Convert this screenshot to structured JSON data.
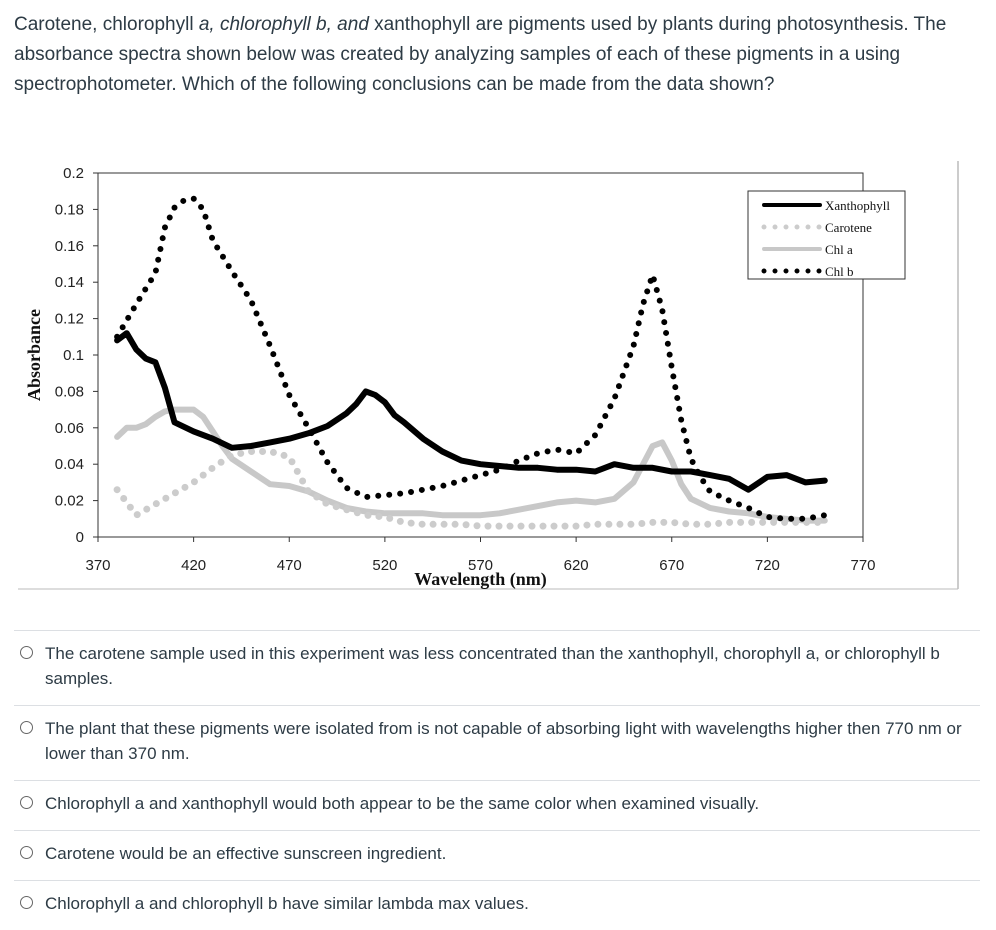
{
  "question": {
    "part1": "Carotene, chlorophyll ",
    "italic": "a, chlorophyll b, and",
    "part2": " xanthophyll are pigments used by plants during photosynthesis. The absorbance spectra shown below was created by analyzing samples of each of these pigments in a using spectrophotometer. Which of the following conclusions can be made from the data shown?"
  },
  "answers": [
    {
      "text": "The carotene sample used in this experiment was less concentrated than the xanthophyll, chorophyll a, or chlorophyll b samples."
    },
    {
      "text": "The plant that these pigments were isolated from is not capable of absorbing light with wavelengths higher then 770 nm or lower than 370 nm."
    },
    {
      "text": "Chlorophyll a and xanthophyll would both appear to be the same color when examined visually."
    },
    {
      "text": "Carotene would be an effective sunscreen ingredient."
    },
    {
      "text": "Chlorophyll a and chlorophyll b have similar lambda max values."
    }
  ],
  "chart_data": {
    "type": "line",
    "xlabel": "Wavelength (nm)",
    "ylabel": "Absorbance",
    "xlim": [
      370,
      770
    ],
    "ylim": [
      0,
      0.2
    ],
    "x_ticks": [
      "370",
      "420",
      "470",
      "520",
      "570",
      "620",
      "670",
      "720",
      "770"
    ],
    "y_ticks": [
      "0",
      "0.02",
      "0.04",
      "0.06",
      "0.08",
      "0.1",
      "0.12",
      "0.14",
      "0.16",
      "0.18",
      "0.2"
    ],
    "legend_position": "top-right",
    "series": [
      {
        "name": "Xanthophyll",
        "color": "#000000",
        "style": "solid",
        "x": [
          380,
          385,
          390,
          395,
          400,
          405,
          410,
          420,
          430,
          440,
          450,
          460,
          470,
          480,
          490,
          500,
          505,
          510,
          515,
          520,
          525,
          530,
          540,
          550,
          560,
          570,
          580,
          590,
          600,
          610,
          620,
          630,
          640,
          650,
          660,
          670,
          680,
          690,
          700,
          710,
          720,
          730,
          740,
          750
        ],
        "y": [
          0.108,
          0.112,
          0.103,
          0.098,
          0.096,
          0.082,
          0.063,
          0.058,
          0.054,
          0.049,
          0.05,
          0.052,
          0.054,
          0.057,
          0.061,
          0.068,
          0.073,
          0.08,
          0.078,
          0.074,
          0.067,
          0.063,
          0.054,
          0.047,
          0.042,
          0.04,
          0.039,
          0.038,
          0.038,
          0.037,
          0.037,
          0.036,
          0.04,
          0.038,
          0.038,
          0.036,
          0.036,
          0.034,
          0.032,
          0.026,
          0.033,
          0.034,
          0.03,
          0.031
        ]
      },
      {
        "name": "Carotene",
        "color": "#cccccc",
        "style": "dotted",
        "x": [
          380,
          390,
          400,
          410,
          420,
          430,
          440,
          450,
          460,
          470,
          480,
          490,
          500,
          510,
          520,
          530,
          540,
          550,
          560,
          570,
          580,
          590,
          600,
          610,
          620,
          630,
          640,
          650,
          660,
          670,
          680,
          690,
          700,
          710,
          720,
          730,
          740,
          750
        ],
        "y": [
          0.026,
          0.012,
          0.018,
          0.024,
          0.03,
          0.038,
          0.045,
          0.047,
          0.047,
          0.044,
          0.025,
          0.018,
          0.015,
          0.012,
          0.011,
          0.008,
          0.007,
          0.007,
          0.007,
          0.006,
          0.006,
          0.006,
          0.006,
          0.006,
          0.006,
          0.007,
          0.007,
          0.007,
          0.008,
          0.008,
          0.007,
          0.007,
          0.008,
          0.008,
          0.008,
          0.008,
          0.008,
          0.008
        ]
      },
      {
        "name": "Chl a",
        "color": "#c8c8c8",
        "style": "solid",
        "x": [
          380,
          385,
          390,
          395,
          400,
          405,
          410,
          415,
          420,
          425,
          430,
          435,
          440,
          450,
          460,
          470,
          480,
          490,
          500,
          510,
          520,
          530,
          540,
          550,
          560,
          570,
          580,
          590,
          600,
          610,
          620,
          630,
          640,
          650,
          660,
          665,
          670,
          675,
          680,
          690,
          700,
          710,
          720,
          730,
          740,
          750
        ],
        "y": [
          0.055,
          0.06,
          0.06,
          0.062,
          0.066,
          0.069,
          0.07,
          0.07,
          0.07,
          0.066,
          0.058,
          0.05,
          0.043,
          0.036,
          0.029,
          0.028,
          0.025,
          0.02,
          0.016,
          0.014,
          0.013,
          0.013,
          0.013,
          0.012,
          0.012,
          0.012,
          0.013,
          0.015,
          0.017,
          0.019,
          0.02,
          0.019,
          0.021,
          0.03,
          0.05,
          0.052,
          0.042,
          0.029,
          0.021,
          0.016,
          0.014,
          0.013,
          0.011,
          0.01,
          0.009,
          0.009
        ]
      },
      {
        "name": "Chl b",
        "color": "#000000",
        "style": "dotted",
        "x": [
          380,
          390,
          400,
          405,
          410,
          415,
          420,
          425,
          430,
          440,
          450,
          460,
          470,
          480,
          490,
          500,
          510,
          520,
          530,
          540,
          550,
          560,
          570,
          580,
          590,
          600,
          610,
          620,
          630,
          640,
          650,
          655,
          660,
          665,
          670,
          675,
          680,
          685,
          690,
          700,
          710,
          720,
          730,
          740,
          750
        ],
        "y": [
          0.11,
          0.128,
          0.145,
          0.17,
          0.181,
          0.185,
          0.186,
          0.18,
          0.163,
          0.146,
          0.13,
          0.105,
          0.078,
          0.06,
          0.041,
          0.027,
          0.022,
          0.023,
          0.024,
          0.026,
          0.028,
          0.031,
          0.034,
          0.037,
          0.042,
          0.046,
          0.048,
          0.046,
          0.056,
          0.076,
          0.105,
          0.128,
          0.144,
          0.125,
          0.093,
          0.064,
          0.043,
          0.033,
          0.025,
          0.02,
          0.016,
          0.011,
          0.01,
          0.01,
          0.012
        ]
      }
    ]
  }
}
